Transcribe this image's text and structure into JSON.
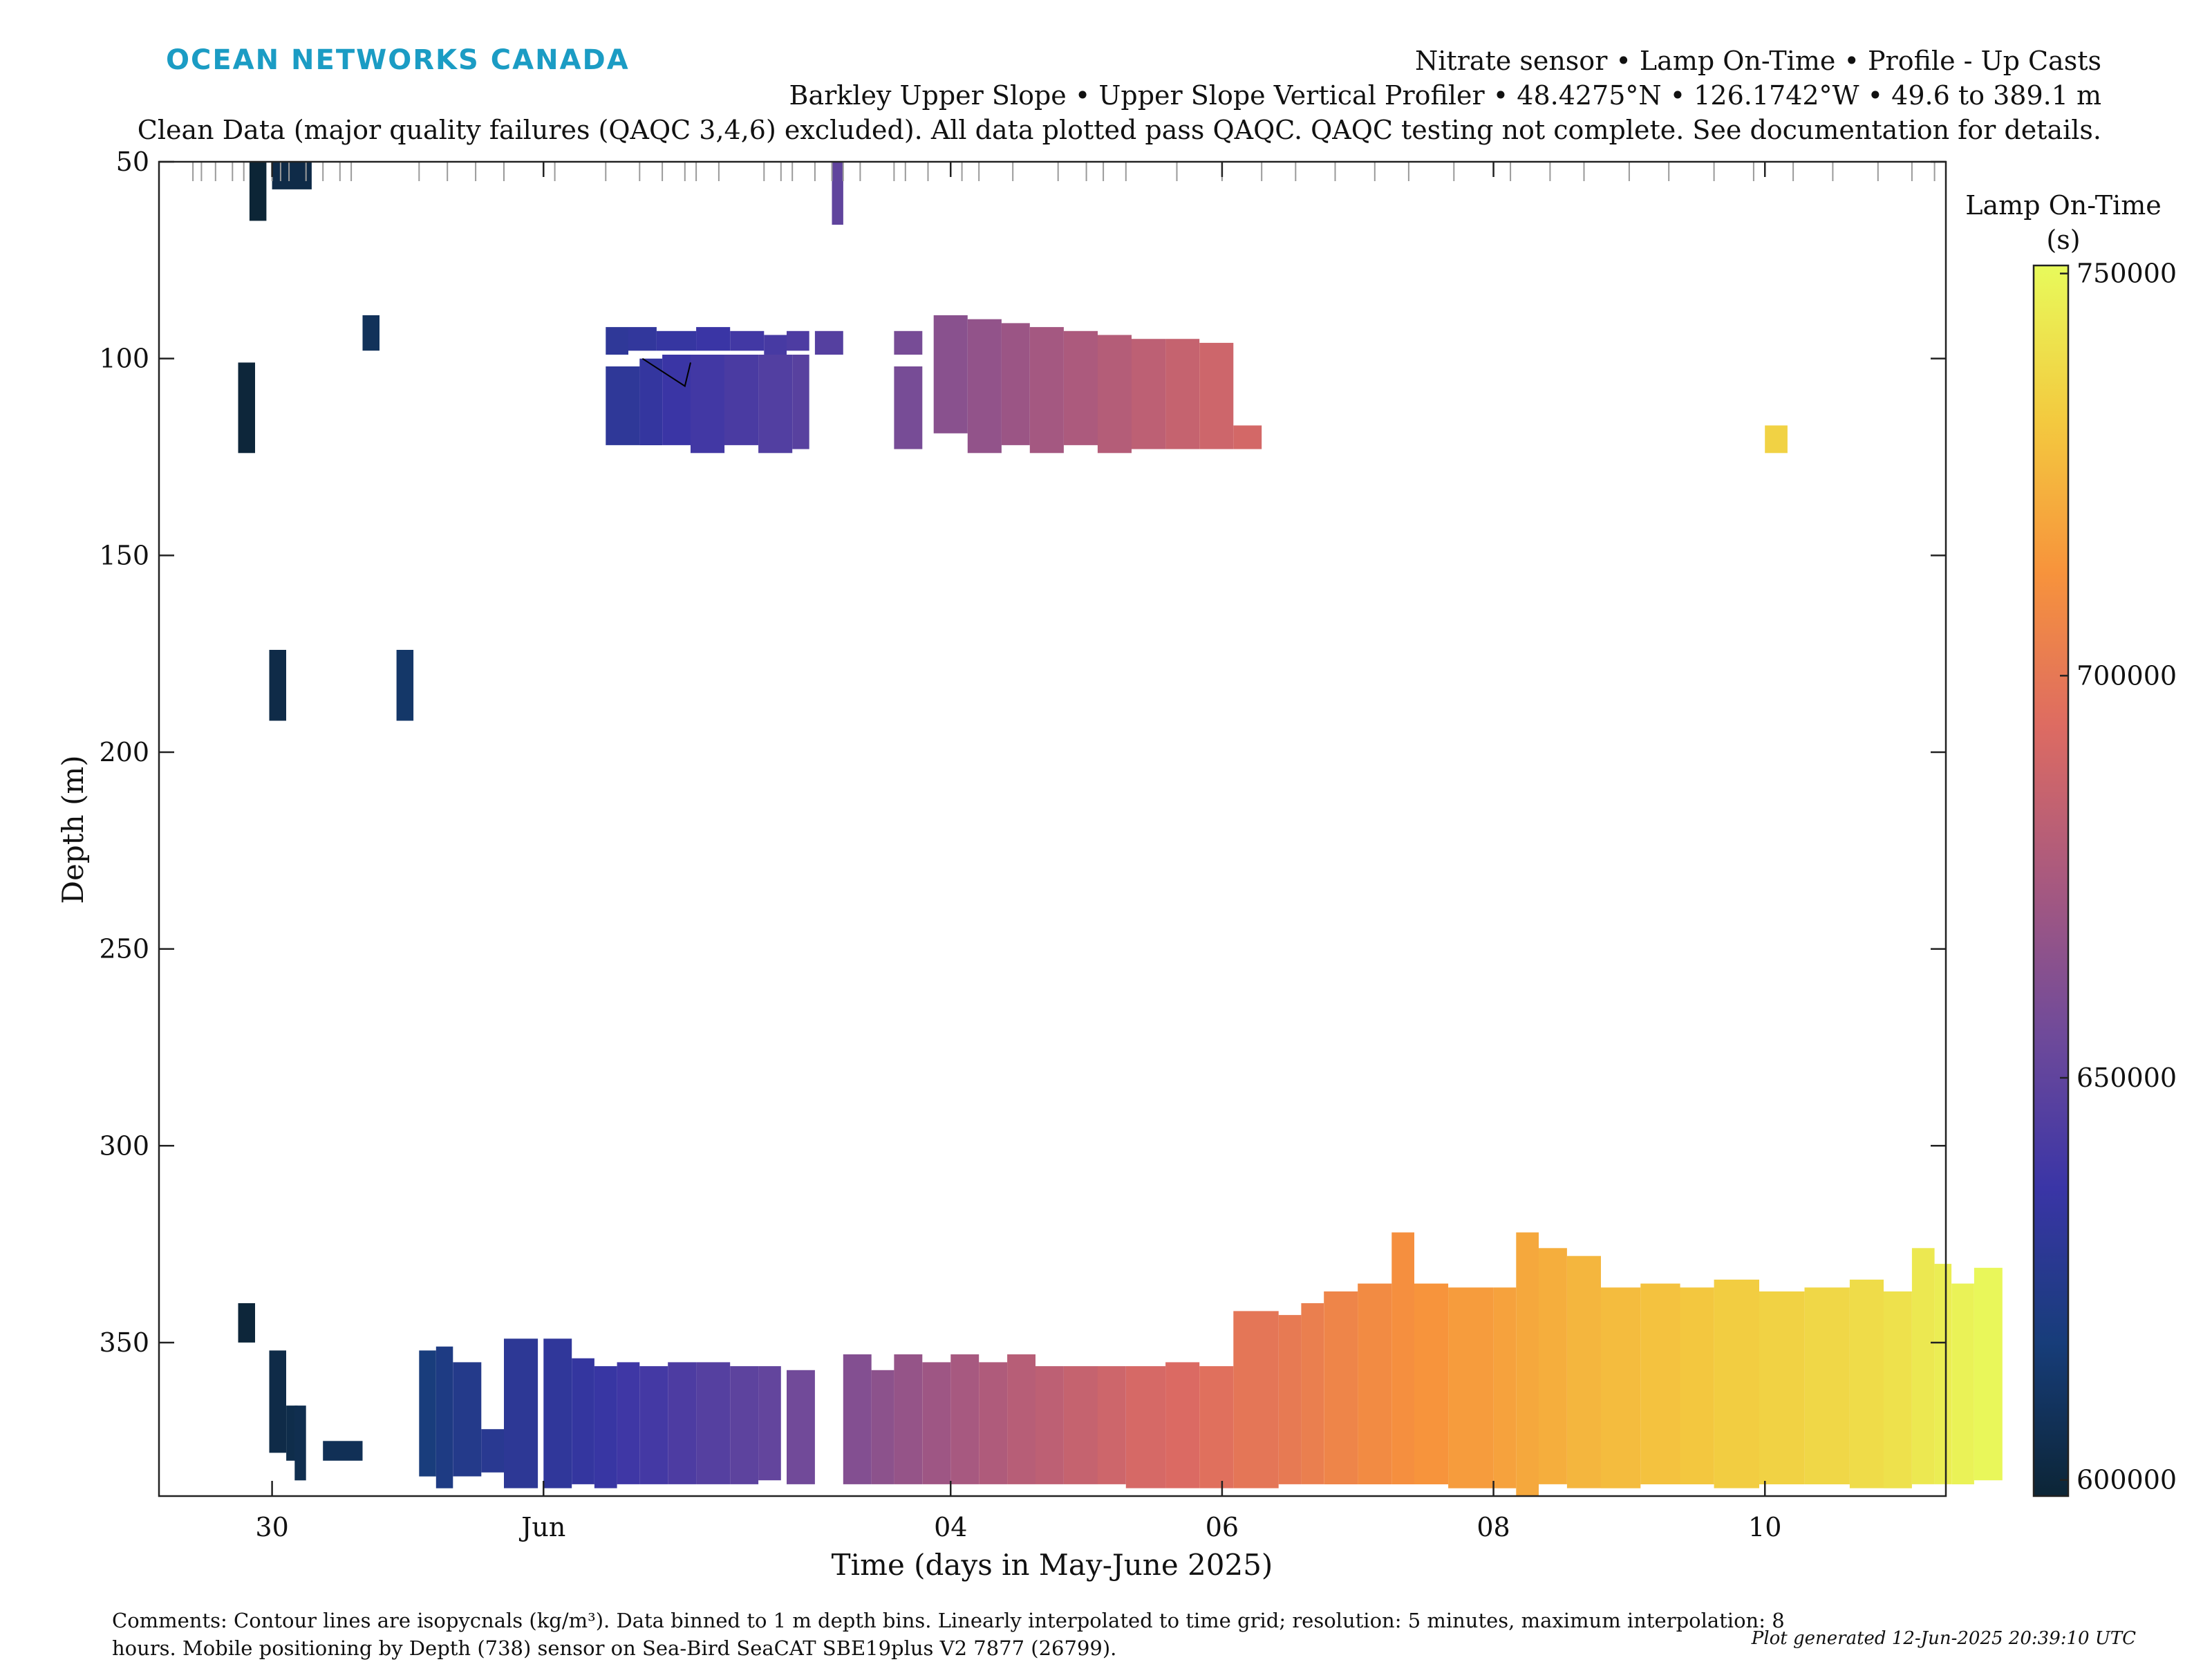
{
  "brand": "OCEAN NETWORKS CANADA",
  "header": {
    "line1": "Nitrate sensor • Lamp On-Time • Profile - Up Casts",
    "line2": "Barkley Upper Slope • Upper Slope Vertical Profiler • 48.4275°N • 126.1742°W • 49.6 to 389.1 m",
    "line3": "Clean Data (major quality failures (QAQC 3,4,6) excluded). All data plotted pass QAQC. QAQC testing not complete. See documentation for details."
  },
  "footer": {
    "comments": "Comments: Contour lines are isopycnals (kg/m³). Data binned to 1 m depth bins. Linearly interpolated to time grid; resolution: 5 minutes, maximum interpolation: 8 hours. Mobile positioning by Depth (738) sensor on Sea-Bird SeaCAT SBE19plus V2 7877 (26799).",
    "generated": "Plot generated 12-Jun-2025 20:39:10 UTC"
  },
  "chart_data": {
    "type": "heatmap",
    "xlabel": "Time (days in May-June 2025)",
    "ylabel": "Depth (m)",
    "xlim": [
      "2025-05-29 04:00",
      "2025-06-11 08:00"
    ],
    "ylim": [
      50,
      389
    ],
    "y_reversed": true,
    "x_ticks": [
      {
        "t": "2025-05-30",
        "label": "30"
      },
      {
        "t": "2025-06-01",
        "label": "Jun"
      },
      {
        "t": "2025-06-04",
        "label": "04"
      },
      {
        "t": "2025-06-06",
        "label": "06"
      },
      {
        "t": "2025-06-08",
        "label": "08"
      },
      {
        "t": "2025-06-10",
        "label": "10"
      }
    ],
    "y_ticks": [
      50,
      100,
      150,
      200,
      250,
      300,
      350
    ],
    "colorbar": {
      "label": "Lamp On-Time",
      "unit": "(s)",
      "min": 598000,
      "max": 751000,
      "ticks": [
        600000,
        650000,
        700000,
        750000
      ],
      "colormap": [
        "#0c2536",
        "#173d7a",
        "#3a35a6",
        "#6f4a9a",
        "#a8597f",
        "#dd6b62",
        "#f7933c",
        "#f3ca3f",
        "#e8fa5b"
      ]
    },
    "cast_times": [
      "2025-05-29 10:00",
      "2025-05-29 11:30",
      "2025-05-29 14:00",
      "2025-05-29 17:00",
      "2025-05-29 19:00",
      "2025-05-30 00:00",
      "2025-05-30 01:30",
      "2025-05-30 03:00",
      "2025-05-30 06:00",
      "2025-05-30 09:00",
      "2025-05-30 12:00",
      "2025-05-30 14:00",
      "2025-05-31 02:00",
      "2025-05-31 07:00",
      "2025-05-31 12:00",
      "2025-05-31 17:00",
      "2025-06-01 02:00",
      "2025-06-01 11:00",
      "2025-06-01 17:00",
      "2025-06-01 21:00",
      "2025-06-02 01:00",
      "2025-06-02 03:00",
      "2025-06-02 07:00",
      "2025-06-02 15:00",
      "2025-06-02 18:00",
      "2025-06-02 20:00",
      "2025-06-03 00:00",
      "2025-06-03 03:00",
      "2025-06-03 05:00",
      "2025-06-03 08:00",
      "2025-06-03 14:00",
      "2025-06-03 16:00",
      "2025-06-03 20:00",
      "2025-06-04 02:00",
      "2025-06-04 05:00",
      "2025-06-04 11:00",
      "2025-06-04 19:00",
      "2025-06-05 00:00",
      "2025-06-05 03:00",
      "2025-06-05 07:00",
      "2025-06-05 16:00",
      "2025-06-06 00:00",
      "2025-06-06 07:00",
      "2025-06-06 13:00",
      "2025-06-06 20:00",
      "2025-06-07 03:00",
      "2025-06-07 09:00",
      "2025-06-07 17:00",
      "2025-06-08 03:00",
      "2025-06-08 10:00",
      "2025-06-08 16:00",
      "2025-06-09 00:00",
      "2025-06-09 07:00",
      "2025-06-09 15:00",
      "2025-06-09 22:00",
      "2025-06-10 05:00",
      "2025-06-10 12:00",
      "2025-06-10 20:00",
      "2025-06-11 02:00",
      "2025-06-11 06:00"
    ],
    "blocks": [
      {
        "t0": "2025-05-29 20:00",
        "t1": "2025-05-29 23:00",
        "d0": 50,
        "d1": 65,
        "v": 598000
      },
      {
        "t0": "2025-05-29 18:00",
        "t1": "2025-05-29 21:00",
        "d0": 101,
        "d1": 124,
        "v": 599000
      },
      {
        "t0": "2025-05-29 18:00",
        "t1": "2025-05-29 21:00",
        "d0": 340,
        "d1": 350,
        "v": 599000
      },
      {
        "t0": "2025-05-30 00:00",
        "t1": "2025-05-30 07:00",
        "d0": 50,
        "d1": 57,
        "v": 603000
      },
      {
        "t0": "2025-05-29 23:30",
        "t1": "2025-05-30 02:30",
        "d0": 174,
        "d1": 192,
        "v": 603000
      },
      {
        "t0": "2025-05-29 23:30",
        "t1": "2025-05-30 02:30",
        "d0": 352,
        "d1": 378,
        "v": 603000
      },
      {
        "t0": "2025-05-30 02:30",
        "t1": "2025-05-30 04:30",
        "d0": 366,
        "d1": 380,
        "v": 604000
      },
      {
        "t0": "2025-05-30 04:00",
        "t1": "2025-05-30 06:00",
        "d0": 366,
        "d1": 385,
        "v": 605000
      },
      {
        "t0": "2025-05-30 09:00",
        "t1": "2025-05-30 16:00",
        "d0": 375,
        "d1": 380,
        "v": 607000
      },
      {
        "t0": "2025-05-30 16:00",
        "t1": "2025-05-30 19:00",
        "d0": 89,
        "d1": 98,
        "v": 608000
      },
      {
        "t0": "2025-05-30 22:00",
        "t1": "2025-05-31 01:00",
        "d0": 174,
        "d1": 192,
        "v": 612000
      },
      {
        "t0": "2025-05-31 02:00",
        "t1": "2025-05-31 05:00",
        "d0": 352,
        "d1": 384,
        "v": 618000
      },
      {
        "t0": "2025-05-31 05:00",
        "t1": "2025-05-31 08:00",
        "d0": 351,
        "d1": 387,
        "v": 621000
      },
      {
        "t0": "2025-05-31 08:00",
        "t1": "2025-05-31 13:00",
        "d0": 355,
        "d1": 384,
        "v": 624000
      },
      {
        "t0": "2025-05-31 13:00",
        "t1": "2025-05-31 17:00",
        "d0": 372,
        "d1": 383,
        "v": 627000
      },
      {
        "t0": "2025-05-31 17:00",
        "t1": "2025-05-31 23:00",
        "d0": 349,
        "d1": 387,
        "v": 629000
      },
      {
        "t0": "2025-06-01 00:00",
        "t1": "2025-06-01 05:00",
        "d0": 349,
        "d1": 387,
        "v": 631000
      },
      {
        "t0": "2025-06-01 05:00",
        "t1": "2025-06-01 09:00",
        "d0": 354,
        "d1": 386,
        "v": 633000
      },
      {
        "t0": "2025-06-01 09:00",
        "t1": "2025-06-01 13:00",
        "d0": 356,
        "d1": 387,
        "v": 635000
      },
      {
        "t0": "2025-06-01 13:00",
        "t1": "2025-06-01 17:00",
        "d0": 355,
        "d1": 386,
        "v": 638000
      },
      {
        "t0": "2025-06-01 17:00",
        "t1": "2025-06-01 22:00",
        "d0": 356,
        "d1": 386,
        "v": 640000
      },
      {
        "t0": "2025-06-01 22:00",
        "t1": "2025-06-02 03:00",
        "d0": 355,
        "d1": 386,
        "v": 643000
      },
      {
        "t0": "2025-06-02 03:00",
        "t1": "2025-06-02 09:00",
        "d0": 355,
        "d1": 386,
        "v": 646000
      },
      {
        "t0": "2025-06-02 09:00",
        "t1": "2025-06-02 14:00",
        "d0": 356,
        "d1": 386,
        "v": 649000
      },
      {
        "t0": "2025-06-02 14:00",
        "t1": "2025-06-02 18:00",
        "d0": 356,
        "d1": 385,
        "v": 651000
      },
      {
        "t0": "2025-06-02 19:00",
        "t1": "2025-06-03 00:00",
        "d0": 357,
        "d1": 386,
        "v": 656000
      },
      {
        "t0": "2025-06-03 05:00",
        "t1": "2025-06-03 10:00",
        "d0": 353,
        "d1": 386,
        "v": 662000
      },
      {
        "t0": "2025-06-03 10:00",
        "t1": "2025-06-03 14:00",
        "d0": 357,
        "d1": 386,
        "v": 665000
      },
      {
        "t0": "2025-06-03 14:00",
        "t1": "2025-06-03 19:00",
        "d0": 353,
        "d1": 386,
        "v": 668000
      },
      {
        "t0": "2025-06-03 19:00",
        "t1": "2025-06-04 00:00",
        "d0": 355,
        "d1": 386,
        "v": 671000
      },
      {
        "t0": "2025-06-04 00:00",
        "t1": "2025-06-04 05:00",
        "d0": 353,
        "d1": 386,
        "v": 674000
      },
      {
        "t0": "2025-06-04 05:00",
        "t1": "2025-06-04 10:00",
        "d0": 355,
        "d1": 386,
        "v": 677000
      },
      {
        "t0": "2025-06-04 10:00",
        "t1": "2025-06-04 15:00",
        "d0": 353,
        "d1": 386,
        "v": 680000
      },
      {
        "t0": "2025-06-04 15:00",
        "t1": "2025-06-04 20:00",
        "d0": 356,
        "d1": 386,
        "v": 682000
      },
      {
        "t0": "2025-06-04 20:00",
        "t1": "2025-06-05 02:00",
        "d0": 356,
        "d1": 386,
        "v": 685000
      },
      {
        "t0": "2025-06-05 02:00",
        "t1": "2025-06-05 07:00",
        "d0": 356,
        "d1": 386,
        "v": 688000
      },
      {
        "t0": "2025-06-05 07:00",
        "t1": "2025-06-05 14:00",
        "d0": 356,
        "d1": 387,
        "v": 691000
      },
      {
        "t0": "2025-06-05 14:00",
        "t1": "2025-06-05 20:00",
        "d0": 355,
        "d1": 387,
        "v": 693000
      },
      {
        "t0": "2025-06-05 20:00",
        "t1": "2025-06-06 02:00",
        "d0": 356,
        "d1": 387,
        "v": 696000
      },
      {
        "t0": "2025-06-06 02:00",
        "t1": "2025-06-06 10:00",
        "d0": 342,
        "d1": 387,
        "v": 699000
      },
      {
        "t0": "2025-06-06 10:00",
        "t1": "2025-06-06 14:00",
        "d0": 343,
        "d1": 386,
        "v": 701000
      },
      {
        "t0": "2025-06-06 14:00",
        "t1": "2025-06-06 18:00",
        "d0": 340,
        "d1": 386,
        "v": 703000
      },
      {
        "t0": "2025-06-06 18:00",
        "t1": "2025-06-07 00:00",
        "d0": 337,
        "d1": 386,
        "v": 706000
      },
      {
        "t0": "2025-06-07 00:00",
        "t1": "2025-06-07 06:00",
        "d0": 335,
        "d1": 386,
        "v": 709000
      },
      {
        "t0": "2025-06-07 06:00",
        "t1": "2025-06-07 10:00",
        "d0": 322,
        "d1": 386,
        "v": 711000
      },
      {
        "t0": "2025-06-07 10:00",
        "t1": "2025-06-07 16:00",
        "d0": 335,
        "d1": 386,
        "v": 713000
      },
      {
        "t0": "2025-06-07 16:00",
        "t1": "2025-06-08 00:00",
        "d0": 336,
        "d1": 387,
        "v": 716000
      },
      {
        "t0": "2025-06-08 00:00",
        "t1": "2025-06-08 04:00",
        "d0": 336,
        "d1": 387,
        "v": 718000
      },
      {
        "t0": "2025-06-08 04:00",
        "t1": "2025-06-08 08:00",
        "d0": 322,
        "d1": 389,
        "v": 720000
      },
      {
        "t0": "2025-06-08 08:00",
        "t1": "2025-06-08 13:00",
        "d0": 326,
        "d1": 386,
        "v": 722000
      },
      {
        "t0": "2025-06-08 13:00",
        "t1": "2025-06-08 19:00",
        "d0": 328,
        "d1": 387,
        "v": 725000
      },
      {
        "t0": "2025-06-08 19:00",
        "t1": "2025-06-09 02:00",
        "d0": 336,
        "d1": 387,
        "v": 727000
      },
      {
        "t0": "2025-06-09 02:00",
        "t1": "2025-06-09 09:00",
        "d0": 335,
        "d1": 386,
        "v": 729000
      },
      {
        "t0": "2025-06-09 09:00",
        "t1": "2025-06-09 15:00",
        "d0": 336,
        "d1": 386,
        "v": 731000
      },
      {
        "t0": "2025-06-09 15:00",
        "t1": "2025-06-09 23:00",
        "d0": 334,
        "d1": 387,
        "v": 733000
      },
      {
        "t0": "2025-06-09 23:00",
        "t1": "2025-06-10 07:00",
        "d0": 337,
        "d1": 386,
        "v": 735000
      },
      {
        "t0": "2025-06-10 07:00",
        "t1": "2025-06-10 15:00",
        "d0": 336,
        "d1": 386,
        "v": 737000
      },
      {
        "t0": "2025-06-10 15:00",
        "t1": "2025-06-10 21:00",
        "d0": 334,
        "d1": 387,
        "v": 739000
      },
      {
        "t0": "2025-06-10 21:00",
        "t1": "2025-06-11 02:00",
        "d0": 337,
        "d1": 387,
        "v": 741000
      },
      {
        "t0": "2025-06-11 02:00",
        "t1": "2025-06-11 06:00",
        "d0": 326,
        "d1": 386,
        "v": 744000
      },
      {
        "t0": "2025-06-11 06:00",
        "t1": "2025-06-11 09:00",
        "d0": 330,
        "d1": 386,
        "v": 746000
      },
      {
        "t0": "2025-06-11 09:00",
        "t1": "2025-06-11 13:00",
        "d0": 335,
        "d1": 386,
        "v": 748000
      },
      {
        "t0": "2025-06-11 13:00",
        "t1": "2025-06-11 18:00",
        "d0": 331,
        "d1": 385,
        "v": 750000
      },
      {
        "t0": "2025-06-01 11:00",
        "t1": "2025-06-01 15:00",
        "d0": 92,
        "d1": 99,
        "v": 630000
      },
      {
        "t0": "2025-06-01 15:00",
        "t1": "2025-06-01 20:00",
        "d0": 92,
        "d1": 98,
        "v": 632000
      },
      {
        "t0": "2025-06-01 20:00",
        "t1": "2025-06-02 03:00",
        "d0": 93,
        "d1": 98,
        "v": 634000
      },
      {
        "t0": "2025-06-02 03:00",
        "t1": "2025-06-02 09:00",
        "d0": 92,
        "d1": 98,
        "v": 636000
      },
      {
        "t0": "2025-06-02 09:00",
        "t1": "2025-06-02 15:00",
        "d0": 93,
        "d1": 98,
        "v": 639000
      },
      {
        "t0": "2025-06-02 15:00",
        "t1": "2025-06-02 19:00",
        "d0": 94,
        "d1": 99,
        "v": 641000
      },
      {
        "t0": "2025-06-02 19:00",
        "t1": "2025-06-02 23:00",
        "d0": 93,
        "d1": 98,
        "v": 643000
      },
      {
        "t0": "2025-06-03 00:00",
        "t1": "2025-06-03 05:00",
        "d0": 93,
        "d1": 99,
        "v": 646000
      },
      {
        "t0": "2025-06-01 11:00",
        "t1": "2025-06-01 17:00",
        "d0": 102,
        "d1": 122,
        "v": 630000
      },
      {
        "t0": "2025-06-01 17:00",
        "t1": "2025-06-01 21:00",
        "d0": 100,
        "d1": 122,
        "v": 633000
      },
      {
        "t0": "2025-06-01 21:00",
        "t1": "2025-06-02 02:00",
        "d0": 99,
        "d1": 122,
        "v": 636000
      },
      {
        "t0": "2025-06-02 02:00",
        "t1": "2025-06-02 08:00",
        "d0": 99,
        "d1": 124,
        "v": 639000
      },
      {
        "t0": "2025-06-02 08:00",
        "t1": "2025-06-02 14:00",
        "d0": 99,
        "d1": 122,
        "v": 642000
      },
      {
        "t0": "2025-06-02 14:00",
        "t1": "2025-06-02 20:00",
        "d0": 99,
        "d1": 124,
        "v": 645000
      },
      {
        "t0": "2025-06-02 20:00",
        "t1": "2025-06-02 23:00",
        "d0": 99,
        "d1": 123,
        "v": 647000
      },
      {
        "t0": "2025-06-03 14:00",
        "t1": "2025-06-03 19:00",
        "d0": 93,
        "d1": 99,
        "v": 658000
      },
      {
        "t0": "2025-06-03 14:00",
        "t1": "2025-06-03 19:00",
        "d0": 102,
        "d1": 123,
        "v": 658000
      },
      {
        "t0": "2025-06-03 03:00",
        "t1": "2025-06-03 05:00",
        "d0": 50,
        "d1": 66,
        "v": 650000
      },
      {
        "t0": "2025-06-03 21:00",
        "t1": "2025-06-04 03:00",
        "d0": 89,
        "d1": 119,
        "v": 664000
      },
      {
        "t0": "2025-06-04 03:00",
        "t1": "2025-06-04 09:00",
        "d0": 90,
        "d1": 124,
        "v": 667000
      },
      {
        "t0": "2025-06-04 09:00",
        "t1": "2025-06-04 14:00",
        "d0": 91,
        "d1": 122,
        "v": 670000
      },
      {
        "t0": "2025-06-04 14:00",
        "t1": "2025-06-04 20:00",
        "d0": 92,
        "d1": 124,
        "v": 673000
      },
      {
        "t0": "2025-06-04 20:00",
        "t1": "2025-06-05 02:00",
        "d0": 93,
        "d1": 122,
        "v": 676000
      },
      {
        "t0": "2025-06-05 02:00",
        "t1": "2025-06-05 08:00",
        "d0": 94,
        "d1": 124,
        "v": 679000
      },
      {
        "t0": "2025-06-05 08:00",
        "t1": "2025-06-05 14:00",
        "d0": 95,
        "d1": 123,
        "v": 682000
      },
      {
        "t0": "2025-06-05 14:00",
        "t1": "2025-06-05 20:00",
        "d0": 95,
        "d1": 123,
        "v": 685000
      },
      {
        "t0": "2025-06-05 20:00",
        "t1": "2025-06-06 02:00",
        "d0": 96,
        "d1": 123,
        "v": 688000
      },
      {
        "t0": "2025-06-06 02:00",
        "t1": "2025-06-06 07:00",
        "d0": 117,
        "d1": 123,
        "v": 690000
      },
      {
        "t0": "2025-06-10 00:00",
        "t1": "2025-06-10 04:00",
        "d0": 117,
        "d1": 124,
        "v": 735000
      }
    ],
    "annotation_line": [
      {
        "t": "2025-06-01 17:30",
        "d": 100
      },
      {
        "t": "2025-06-02 01:00",
        "d": 107
      },
      {
        "t": "2025-06-02 02:00",
        "d": 101
      }
    ]
  }
}
